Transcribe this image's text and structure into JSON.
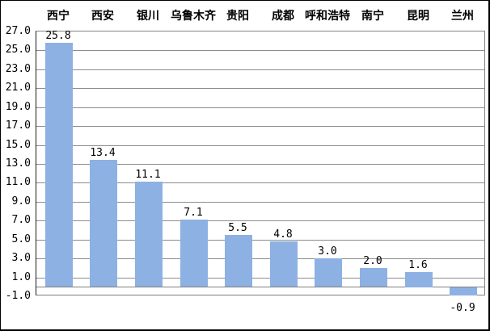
{
  "chart_data": {
    "type": "bar",
    "title": "",
    "xlabel": "",
    "ylabel": "",
    "categories": [
      "西宁",
      "西安",
      "银川",
      "乌鲁木齐",
      "贵阳",
      "成都",
      "呼和浩特",
      "南宁",
      "昆明",
      "兰州"
    ],
    "values": [
      25.8,
      13.4,
      11.1,
      7.1,
      5.5,
      4.8,
      3.0,
      2.0,
      1.6,
      -0.9
    ],
    "value_labels": [
      "25.8",
      "13.4",
      "11.1",
      "7.1",
      "5.5",
      "4.8",
      "3.0",
      "2.0",
      "1.6",
      "-0.9"
    ],
    "ylim": [
      -1.0,
      27.0
    ],
    "ytick_step": 2.0,
    "yticks": [
      27.0,
      25.0,
      23.0,
      21.0,
      19.0,
      17.0,
      15.0,
      13.0,
      11.0,
      9.0,
      7.0,
      5.0,
      3.0,
      1.0,
      -1.0
    ],
    "ytick_labels": [
      "27.0",
      "25.0",
      "23.0",
      "21.0",
      "19.0",
      "17.0",
      "15.0",
      "13.0",
      "11.0",
      "9.0",
      "7.0",
      "5.0",
      "3.0",
      "1.0",
      "-1.0"
    ],
    "grid": true,
    "legend": "none",
    "category_axis_position": "top",
    "colors": {
      "bar": "#8DB1E2",
      "gridline": "#8C8C8C",
      "zero_axis": "#808080",
      "plot_border": "#808080",
      "left_axis": "#1a1a1a",
      "text": "#000000",
      "background": "#FFFFFF",
      "outer_border": "#000000"
    }
  }
}
